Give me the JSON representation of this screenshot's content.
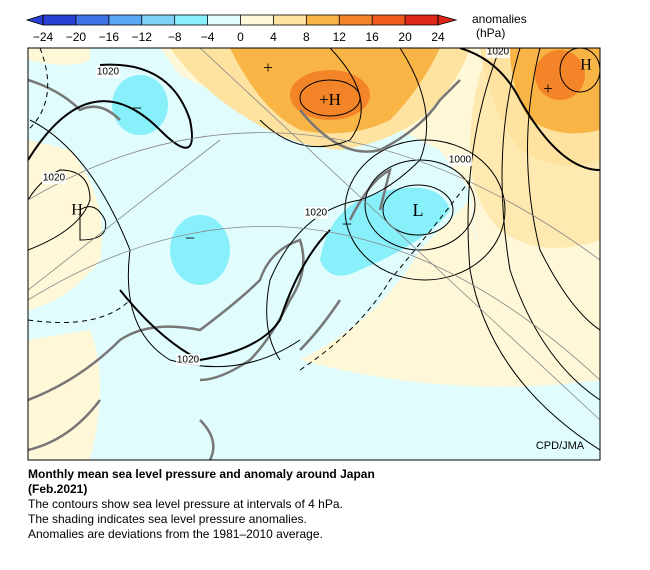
{
  "colorbar": {
    "label": [
      "anomalies",
      "(hPa)"
    ],
    "ticks": [
      {
        "value": -24,
        "label": "−24"
      },
      {
        "value": -20,
        "label": "−20"
      },
      {
        "value": -16,
        "label": "−16"
      },
      {
        "value": -12,
        "label": "−12"
      },
      {
        "value": -8,
        "label": "−8"
      },
      {
        "value": -4,
        "label": "−4"
      },
      0,
      4,
      8,
      12,
      16,
      20,
      24
    ],
    "colors": [
      "#2a3fd6",
      "#3f74e6",
      "#5aa6f2",
      "#7fd0f8",
      "#88f0fa",
      "#e0fcfc",
      "#fff8d8",
      "#fde2a0",
      "#f9b446",
      "#f38428",
      "#ef5a1a",
      "#e0281a"
    ]
  },
  "map": {
    "labels": [
      "1020",
      "1020",
      "1020",
      "1020",
      "1000",
      "1020",
      "H",
      "L",
      "H",
      "+H",
      "+",
      "+",
      "−",
      "−",
      "−"
    ],
    "credit": "CPD/JMA"
  },
  "caption": {
    "title": [
      "Monthly mean sea level pressure and anomaly around Japan",
      "(Feb.2021)"
    ],
    "lines": [
      "The contours show sea level pressure at intervals of 4 hPa.",
      "The shading indicates sea level pressure anomalies.",
      "Anomalies are deviations from the 1981–2010 average."
    ]
  }
}
